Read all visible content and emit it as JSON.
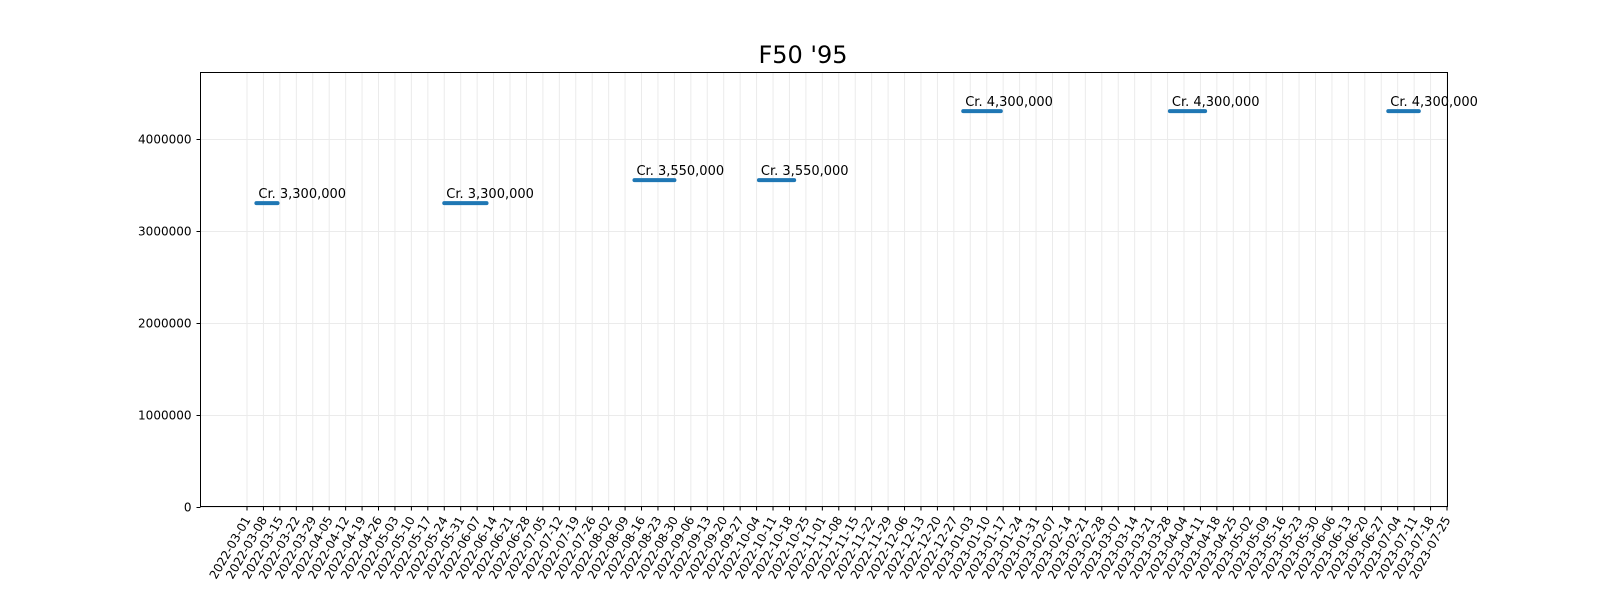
{
  "chart_data": {
    "type": "line",
    "title": "F50 '95",
    "xlabel": "",
    "ylabel": "",
    "ylim": [
      0,
      4720000
    ],
    "yticks": [
      0,
      1000000,
      2000000,
      3000000,
      4000000
    ],
    "ytick_labels": [
      "0",
      "1000000",
      "2000000",
      "3000000",
      "4000000"
    ],
    "grid": true,
    "x_tick_labels": [
      "2022-03-01",
      "2022-03-08",
      "2022-03-15",
      "2022-03-22",
      "2022-03-29",
      "2022-04-05",
      "2022-04-12",
      "2022-04-19",
      "2022-04-26",
      "2022-05-03",
      "2022-05-10",
      "2022-05-17",
      "2022-05-24",
      "2022-05-31",
      "2022-06-07",
      "2022-06-14",
      "2022-06-21",
      "2022-06-28",
      "2022-07-05",
      "2022-07-12",
      "2022-07-19",
      "2022-07-26",
      "2022-08-02",
      "2022-08-09",
      "2022-08-16",
      "2022-08-23",
      "2022-08-30",
      "2022-09-06",
      "2022-09-13",
      "2022-09-20",
      "2022-09-27",
      "2022-10-04",
      "2022-10-11",
      "2022-10-18",
      "2022-10-25",
      "2022-11-01",
      "2022-11-08",
      "2022-11-15",
      "2022-11-22",
      "2022-11-29",
      "2022-12-06",
      "2022-12-13",
      "2022-12-20",
      "2022-12-27",
      "2023-01-03",
      "2023-01-10",
      "2023-01-17",
      "2023-01-24",
      "2023-01-31",
      "2023-02-07",
      "2023-02-14",
      "2023-02-21",
      "2023-02-28",
      "2023-03-07",
      "2023-03-14",
      "2023-03-21",
      "2023-03-28",
      "2023-04-04",
      "2023-04-11",
      "2023-04-18",
      "2023-04-25",
      "2023-05-02",
      "2023-05-09",
      "2023-05-16",
      "2023-05-23",
      "2023-05-30",
      "2023-06-06",
      "2023-06-13",
      "2023-06-20",
      "2023-06-27",
      "2023-07-04",
      "2023-07-11",
      "2023-07-18",
      "2023-07-25"
    ],
    "series": [
      {
        "color": "#1f77b4",
        "segments": [
          {
            "x": [
              "2022-03-05",
              "2022-03-14"
            ],
            "y": 3300000,
            "label": "Cr. 3,300,000"
          },
          {
            "x": [
              "2022-05-24",
              "2022-06-11"
            ],
            "y": 3300000,
            "label": "Cr. 3,300,000"
          },
          {
            "x": [
              "2022-08-13",
              "2022-08-30"
            ],
            "y": 3550000,
            "label": "Cr. 3,550,000"
          },
          {
            "x": [
              "2022-10-05",
              "2022-10-20"
            ],
            "y": 3550000,
            "label": "Cr. 3,550,000"
          },
          {
            "x": [
              "2022-12-31",
              "2023-01-16"
            ],
            "y": 4300000,
            "label": "Cr. 4,300,000"
          },
          {
            "x": [
              "2023-03-29",
              "2023-04-13"
            ],
            "y": 4300000,
            "label": "Cr. 4,300,000"
          },
          {
            "x": [
              "2023-06-30",
              "2023-07-13"
            ],
            "y": 4300000,
            "label": "Cr. 4,300,000"
          }
        ]
      }
    ]
  }
}
